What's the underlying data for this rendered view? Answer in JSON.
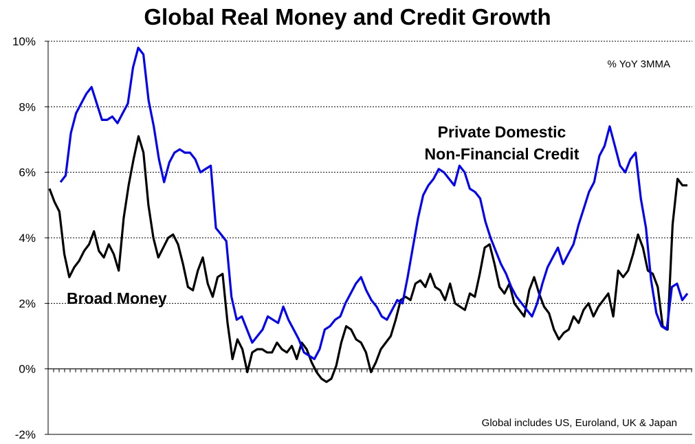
{
  "chart_data": {
    "type": "line",
    "title": "Global Real Money and Credit Growth",
    "units_note": "% YoY 3MMA",
    "footnote": "Global includes US, Euroland, UK & Japan",
    "ylim": [
      -2,
      10
    ],
    "y_ticks": [
      "-2%",
      "0%",
      "2%",
      "4%",
      "6%",
      "8%",
      "10%"
    ],
    "y_tick_values": [
      -2,
      0,
      2,
      4,
      6,
      8,
      10
    ],
    "grid": true,
    "series": [
      {
        "name": "Broad Money",
        "color": "#000000",
        "values": [
          5.5,
          5.1,
          4.8,
          3.5,
          2.8,
          3.1,
          3.3,
          3.6,
          3.8,
          4.2,
          3.6,
          3.4,
          3.8,
          3.5,
          3.0,
          4.6,
          5.6,
          6.4,
          7.1,
          6.6,
          5.0,
          4.0,
          3.4,
          3.7,
          4.0,
          4.1,
          3.8,
          3.2,
          2.5,
          2.4,
          3.0,
          3.4,
          2.6,
          2.2,
          2.8,
          2.9,
          1.4,
          0.3,
          0.9,
          0.6,
          -0.1,
          0.5,
          0.6,
          0.6,
          0.5,
          0.5,
          0.8,
          0.6,
          0.5,
          0.7,
          0.3,
          0.8,
          0.6,
          0.2,
          -0.1,
          -0.3,
          -0.4,
          -0.3,
          0.1,
          0.8,
          1.3,
          1.2,
          0.9,
          0.8,
          0.5,
          -0.1,
          0.2,
          0.6,
          0.8,
          1.0,
          1.5,
          2.1,
          2.2,
          2.1,
          2.6,
          2.7,
          2.5,
          2.9,
          2.5,
          2.4,
          2.1,
          2.6,
          2.0,
          1.9,
          1.8,
          2.3,
          2.2,
          2.9,
          3.7,
          3.8,
          3.2,
          2.5,
          2.3,
          2.6,
          2.0,
          1.8,
          1.6,
          2.4,
          2.8,
          2.3,
          1.9,
          1.7,
          1.2,
          0.9,
          1.1,
          1.2,
          1.6,
          1.4,
          1.8,
          2.0,
          1.6,
          1.9,
          2.1,
          2.3,
          1.6,
          3.0,
          2.8,
          3.0,
          3.5,
          4.1,
          3.7,
          3.0,
          2.9,
          2.5,
          1.3,
          1.2,
          4.4,
          5.8,
          5.6,
          5.6
        ]
      },
      {
        "name": "Private Domestic Non-Financial Credit",
        "label_lines": [
          "Private Domestic",
          "Non-Financial Credit"
        ],
        "color": "#0000ff",
        "values": [
          5.7,
          5.9,
          7.2,
          7.8,
          8.1,
          8.4,
          8.6,
          8.1,
          7.6,
          7.6,
          7.7,
          7.5,
          7.8,
          8.1,
          9.2,
          9.8,
          9.6,
          8.2,
          7.4,
          6.4,
          5.7,
          6.3,
          6.6,
          6.7,
          6.6,
          6.6,
          6.4,
          6.0,
          6.1,
          6.2,
          4.3,
          4.1,
          3.9,
          2.2,
          1.5,
          1.6,
          1.2,
          0.8,
          1.0,
          1.2,
          1.6,
          1.5,
          1.4,
          1.9,
          1.5,
          1.2,
          0.9,
          0.5,
          0.4,
          0.3,
          0.6,
          1.2,
          1.3,
          1.5,
          1.6,
          2.0,
          2.3,
          2.6,
          2.8,
          2.4,
          2.1,
          1.9,
          1.6,
          1.5,
          1.8,
          2.1,
          2.0,
          2.8,
          3.7,
          4.6,
          5.3,
          5.6,
          5.8,
          6.1,
          6.0,
          5.8,
          5.6,
          6.2,
          6.0,
          5.5,
          5.4,
          5.2,
          4.5,
          4.0,
          3.6,
          3.2,
          2.9,
          2.5,
          2.2,
          2.0,
          1.8,
          1.6,
          2.0,
          2.6,
          3.1,
          3.4,
          3.7,
          3.2,
          3.5,
          3.8,
          4.4,
          4.9,
          5.4,
          5.7,
          6.5,
          6.8,
          7.4,
          6.8,
          6.2,
          6.0,
          6.4,
          6.6,
          5.2,
          4.3,
          2.7,
          1.7,
          1.3,
          1.2,
          2.5,
          2.6,
          2.1,
          2.3
        ]
      }
    ]
  }
}
